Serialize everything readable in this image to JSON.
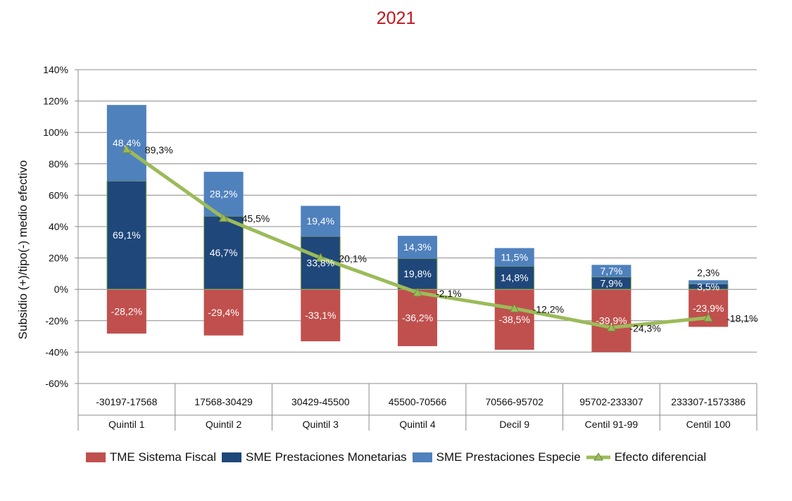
{
  "chart_data": {
    "type": "bar",
    "title": "2021",
    "ylabel": "Subsidio (+)/tipo(-) medio efectivo",
    "xlabel": "",
    "ylim": [
      -60,
      140
    ],
    "yticks": [
      "-60%",
      "-40%",
      "-20%",
      "0%",
      "20%",
      "40%",
      "60%",
      "80%",
      "100%",
      "120%",
      "140%"
    ],
    "grid": true,
    "legend_position": "bottom",
    "categories": [
      {
        "range": "-30197-17568",
        "group": "Quintil 1"
      },
      {
        "range": "17568-30429",
        "group": "Quintil 2"
      },
      {
        "range": "30429-45500",
        "group": "Quintil 3"
      },
      {
        "range": "45500-70566",
        "group": "Quintil 4"
      },
      {
        "range": "70566-95702",
        "group": "Decil 9"
      },
      {
        "range": "95702-233307",
        "group": "Centil 91-99"
      },
      {
        "range": "233307-1573386",
        "group": "Centil 100"
      }
    ],
    "series": [
      {
        "name": "TME Sistema Fiscal",
        "kind": "bar",
        "color": "#c0504d",
        "values": [
          -28.2,
          -29.4,
          -33.1,
          -36.2,
          -38.5,
          -39.9,
          -23.9
        ],
        "labels": [
          "-28,2%",
          "-29,4%",
          "-33,1%",
          "-36,2%",
          "-38,5%",
          "-39,9%",
          "-23,9%"
        ]
      },
      {
        "name": "SME Prestaciones Monetarias",
        "kind": "bar",
        "color": "#1f477a",
        "values": [
          69.1,
          46.7,
          33.8,
          19.8,
          14.8,
          7.9,
          3.5
        ],
        "labels": [
          "69,1%",
          "46,7%",
          "33,8%",
          "19,8%",
          "14,8%",
          "7,9%",
          "3,5%"
        ]
      },
      {
        "name": "SME Prestaciones Especie",
        "kind": "bar",
        "color": "#4f81bd",
        "values": [
          48.4,
          28.2,
          19.4,
          14.3,
          11.5,
          7.7,
          2.3
        ],
        "labels": [
          "48,4%",
          "28,2%",
          "19,4%",
          "14,3%",
          "11,5%",
          "7,7%",
          "2,3%"
        ]
      },
      {
        "name": "Efecto diferencial",
        "kind": "line",
        "color": "#9bbb59",
        "values": [
          89.3,
          45.5,
          20.1,
          -2.1,
          -12.2,
          -24.3,
          -18.1
        ],
        "labels": [
          "89,3%",
          "45,5%",
          "20,1%",
          "-2,1%",
          "-12,2%",
          "-24,3%",
          "-18,1%"
        ]
      }
    ]
  }
}
